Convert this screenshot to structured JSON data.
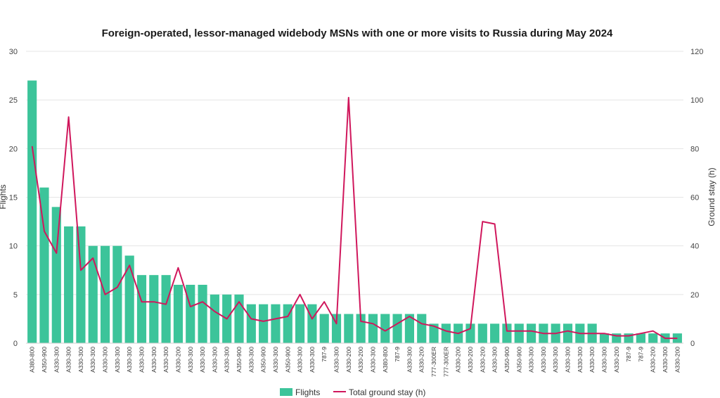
{
  "chart_data": {
    "type": "bar+line",
    "title": "Foreign-operated, lessor-managed widebody MSNs with one or more visits to Russia during May 2024",
    "ylabel_left": "Flights",
    "ylabel_right": "Ground stay (h)",
    "ylim_left": [
      0,
      30
    ],
    "ylim_right": [
      0,
      120
    ],
    "yticks_left": [
      0,
      5,
      10,
      15,
      20,
      25,
      30
    ],
    "yticks_right": [
      0,
      20,
      40,
      60,
      80,
      100,
      120
    ],
    "grid": true,
    "legend_position": "bottom",
    "colors": {
      "bars": "#3cc49a",
      "line": "#d0175c"
    },
    "categories": [
      "A380-800",
      "A350-900",
      "A330-300",
      "A330-300",
      "A330-300",
      "A330-300",
      "A330-300",
      "A330-300",
      "A330-300",
      "A330-300",
      "A330-300",
      "A330-300",
      "A330-200",
      "A330-300",
      "A330-300",
      "A330-300",
      "A330-300",
      "A350-900",
      "A330-300",
      "A350-900",
      "A330-300",
      "A350-900",
      "A330-300",
      "A330-300",
      "787-9",
      "A330-300",
      "A330-200",
      "A330-200",
      "A330-300",
      "A380-800",
      "787-9",
      "A330-300",
      "A330-200",
      "777-300ER",
      "777-300ER",
      "A330-200",
      "A330-200",
      "A330-200",
      "A330-300",
      "A350-900",
      "A350-900",
      "A330-300",
      "A330-300",
      "A330-300",
      "A330-300",
      "A330-300",
      "A330-300",
      "A330-300",
      "A330-200",
      "787-9",
      "787-9",
      "A330-200",
      "A330-300",
      "A330-200"
    ],
    "series": [
      {
        "name": "Flights",
        "type": "bar",
        "axis": "left",
        "values": [
          27,
          16,
          14,
          12,
          12,
          10,
          10,
          10,
          9,
          7,
          7,
          7,
          6,
          6,
          6,
          5,
          5,
          5,
          4,
          4,
          4,
          4,
          4,
          4,
          3,
          3,
          3,
          3,
          3,
          3,
          3,
          3,
          3,
          2,
          2,
          2,
          2,
          2,
          2,
          2,
          2,
          2,
          2,
          2,
          2,
          2,
          2,
          1,
          1,
          1,
          1,
          1,
          1,
          1
        ]
      },
      {
        "name": "Total ground stay (h)",
        "type": "line",
        "axis": "right",
        "values": [
          81,
          46,
          37,
          93,
          30,
          35,
          20,
          23,
          32,
          17,
          17,
          16,
          31,
          15,
          17,
          13,
          10,
          17,
          10,
          9,
          10,
          11,
          20,
          10,
          17,
          8,
          101,
          9,
          8,
          5,
          8,
          11,
          8,
          7,
          5,
          4,
          6,
          50,
          49,
          5,
          5,
          5,
          4,
          4,
          5,
          4,
          4,
          4,
          3,
          3,
          4,
          5,
          2,
          2
        ]
      }
    ]
  }
}
